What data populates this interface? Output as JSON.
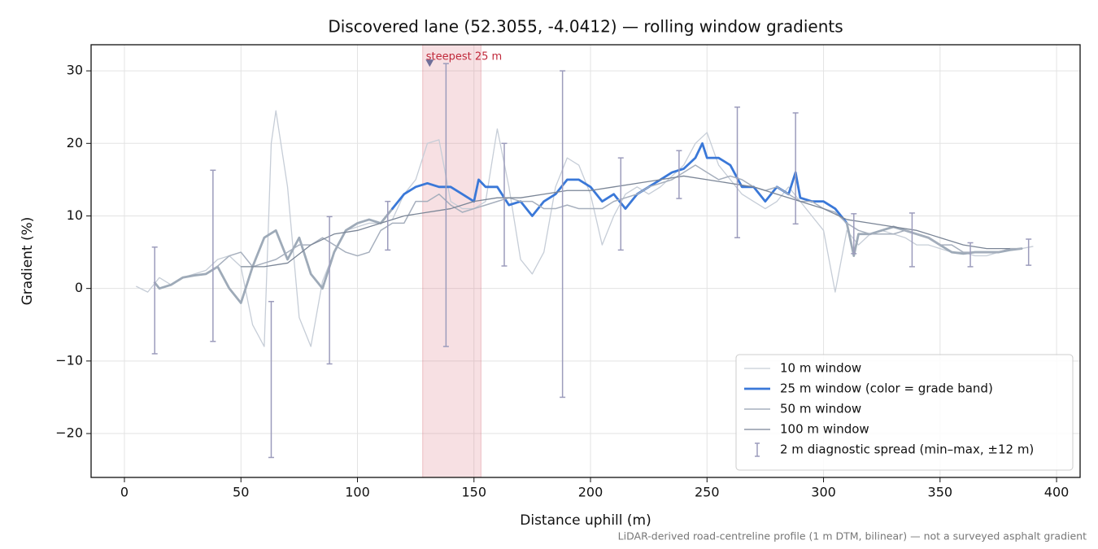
{
  "chart_data": {
    "type": "line",
    "title": "Discovered lane (52.3055, -4.0412) — rolling window gradients",
    "x_label": "Distance uphill (m)",
    "y_label": "Gradient (%)",
    "note": "LiDAR-derived road-centreline profile (1 m DTM, bilinear) — not a surveyed asphalt gradient",
    "xlim": [
      -14.3,
      410.1
    ],
    "ylim": [
      -26.05,
      33.6
    ],
    "xticks": [
      0,
      50,
      100,
      150,
      200,
      250,
      300,
      350,
      400
    ],
    "yticks": [
      {
        "value": -20,
        "label": "−20"
      },
      {
        "value": -10,
        "label": "−10"
      },
      0,
      10,
      20,
      30
    ],
    "grid": true,
    "legend": "lower right",
    "series": [
      {
        "name": "10 m window",
        "color": "#c6cdd7",
        "width": 1.3,
        "x": [
          5,
          10,
          15,
          20,
          25,
          30,
          35,
          40,
          45,
          50,
          55,
          60,
          63,
          65,
          70,
          75,
          80,
          85,
          90,
          95,
          100,
          105,
          110,
          115,
          120,
          125,
          130,
          135,
          140,
          145,
          150,
          155,
          160,
          165,
          170,
          175,
          180,
          185,
          190,
          195,
          200,
          205,
          210,
          215,
          220,
          225,
          230,
          235,
          240,
          245,
          250,
          255,
          260,
          265,
          270,
          275,
          280,
          285,
          290,
          295,
          300,
          305,
          310,
          315,
          320,
          325,
          330,
          335,
          340,
          345,
          350,
          355,
          360,
          365,
          370,
          375,
          380,
          385,
          390
        ],
        "values": [
          0.3,
          -0.5,
          1.5,
          0.5,
          1.5,
          2,
          2.5,
          4,
          4.5,
          3,
          -5,
          -8,
          20,
          24.5,
          14,
          -4,
          -8,
          1,
          5,
          8,
          8.5,
          9,
          9,
          9.5,
          13,
          15,
          20,
          20.5,
          12,
          11,
          11,
          12,
          22,
          14,
          4,
          2,
          5,
          14,
          18,
          17,
          13,
          6,
          10,
          13,
          14,
          13,
          14,
          15.5,
          17,
          20,
          21.5,
          17,
          15,
          13,
          12,
          11,
          12,
          14,
          12,
          10,
          8,
          -0.5,
          8,
          6,
          7.5,
          8,
          7.5,
          7,
          6,
          6,
          5.5,
          5,
          5,
          4.5,
          4.5,
          5,
          5.5,
          5.5,
          5.8
        ]
      },
      {
        "name": "25 m window (color = grade band)",
        "color": "#3a78d8",
        "low_color": "#9eaab8",
        "band_min": 10,
        "width": 2.8,
        "x": [
          13,
          15,
          20,
          25,
          30,
          35,
          40,
          45,
          50,
          55,
          60,
          65,
          70,
          75,
          80,
          85,
          90,
          95,
          100,
          105,
          110,
          115,
          120,
          125,
          130,
          135,
          140,
          145,
          150,
          152,
          155,
          160,
          165,
          170,
          175,
          180,
          185,
          190,
          195,
          200,
          205,
          210,
          215,
          220,
          225,
          230,
          235,
          240,
          245,
          248,
          250,
          255,
          260,
          265,
          270,
          275,
          280,
          285,
          288,
          290,
          295,
          300,
          305,
          310,
          313,
          315,
          320,
          325,
          330,
          335,
          340,
          345,
          350,
          355,
          360,
          365,
          370,
          375,
          380,
          385
        ],
        "values": [
          0.8,
          0,
          0.5,
          1.5,
          1.8,
          2,
          3,
          0,
          -2,
          3,
          7,
          8,
          4,
          7,
          2,
          0,
          5,
          8,
          9,
          9.5,
          9,
          11,
          13,
          14,
          14.5,
          14,
          14,
          13,
          12,
          15,
          14,
          14,
          11.5,
          12,
          10,
          12,
          13,
          15,
          15,
          14,
          12,
          13,
          11,
          13,
          14,
          15,
          16,
          16.5,
          18,
          20,
          18,
          18,
          17,
          14,
          14,
          12,
          14,
          13,
          16,
          12.5,
          12,
          12,
          11,
          9,
          4.5,
          7.5,
          7.5,
          8,
          8.5,
          8,
          7.5,
          7,
          6,
          5,
          4.8,
          5,
          5,
          5,
          5.3,
          5.5
        ]
      },
      {
        "name": "50 m window",
        "color": "#a6afbd",
        "width": 1.5,
        "x": [
          38,
          45,
          50,
          55,
          60,
          65,
          70,
          75,
          80,
          85,
          90,
          95,
          100,
          105,
          110,
          115,
          120,
          125,
          130,
          135,
          140,
          145,
          150,
          155,
          160,
          165,
          170,
          175,
          180,
          185,
          190,
          195,
          200,
          205,
          210,
          215,
          220,
          225,
          230,
          235,
          240,
          245,
          250,
          255,
          260,
          265,
          270,
          275,
          280,
          285,
          290,
          295,
          300,
          305,
          310,
          315,
          320,
          325,
          330,
          335,
          340,
          345,
          350,
          355,
          360,
          365,
          370,
          375,
          380,
          385
        ],
        "values": [
          2.5,
          4.5,
          5,
          3,
          3.5,
          4,
          5,
          6,
          6,
          7,
          6,
          5,
          4.5,
          5,
          8,
          9,
          9,
          12,
          12,
          13,
          11.5,
          10.5,
          11,
          11.5,
          12,
          12.5,
          12,
          12,
          11,
          11,
          11.5,
          11,
          11,
          11,
          12,
          12.5,
          13,
          14,
          14.5,
          15,
          16,
          17,
          16,
          15,
          15.5,
          15,
          14,
          13.5,
          14,
          13,
          12,
          12,
          11,
          10.5,
          9,
          8,
          7.5,
          7.5,
          7.5,
          8,
          7.5,
          7,
          6,
          6,
          5,
          5,
          5,
          5,
          5.5,
          5.5
        ]
      },
      {
        "name": "100 m window",
        "color": "#7a8596",
        "width": 1.3,
        "x": [
          50,
          60,
          70,
          80,
          90,
          100,
          110,
          120,
          130,
          140,
          150,
          160,
          170,
          180,
          190,
          200,
          210,
          220,
          230,
          240,
          250,
          260,
          270,
          280,
          290,
          300,
          310,
          320,
          330,
          340,
          350,
          360,
          370,
          380
        ],
        "values": [
          3,
          3,
          3.5,
          6,
          7.5,
          8,
          9,
          10,
          10.5,
          11,
          12,
          12.5,
          12.5,
          13,
          13.5,
          13.5,
          14,
          14.5,
          15,
          15.5,
          15,
          14.5,
          14,
          13,
          12,
          11,
          9.5,
          9,
          8.5,
          8,
          7,
          6,
          5.5,
          5.5
        ]
      }
    ],
    "error_bars": {
      "name": "2 m diagnostic spread (min–max, ±12 m)",
      "color": "#9c9cbc",
      "x": [
        13,
        38,
        63,
        88,
        113,
        138,
        163,
        188,
        213,
        238,
        263,
        288,
        313,
        338,
        363,
        388
      ],
      "low": [
        -9,
        -7.3,
        -23.3,
        -10.4,
        5.3,
        -8,
        3.1,
        -15,
        5.3,
        12.4,
        7,
        8.9,
        4.8,
        3,
        3,
        3.2
      ],
      "high": [
        5.7,
        16.3,
        -1.8,
        9.9,
        12,
        31,
        20,
        30,
        18,
        19,
        25,
        24.2,
        10.3,
        10.4,
        6.3,
        6.8
      ]
    },
    "highlight": {
      "label": "steepest 25 m",
      "x0": 128,
      "x1": 153,
      "marker_x": 131,
      "marker_y": 31,
      "color": "#d9737f",
      "marker_color": "#6f6f9a"
    }
  }
}
